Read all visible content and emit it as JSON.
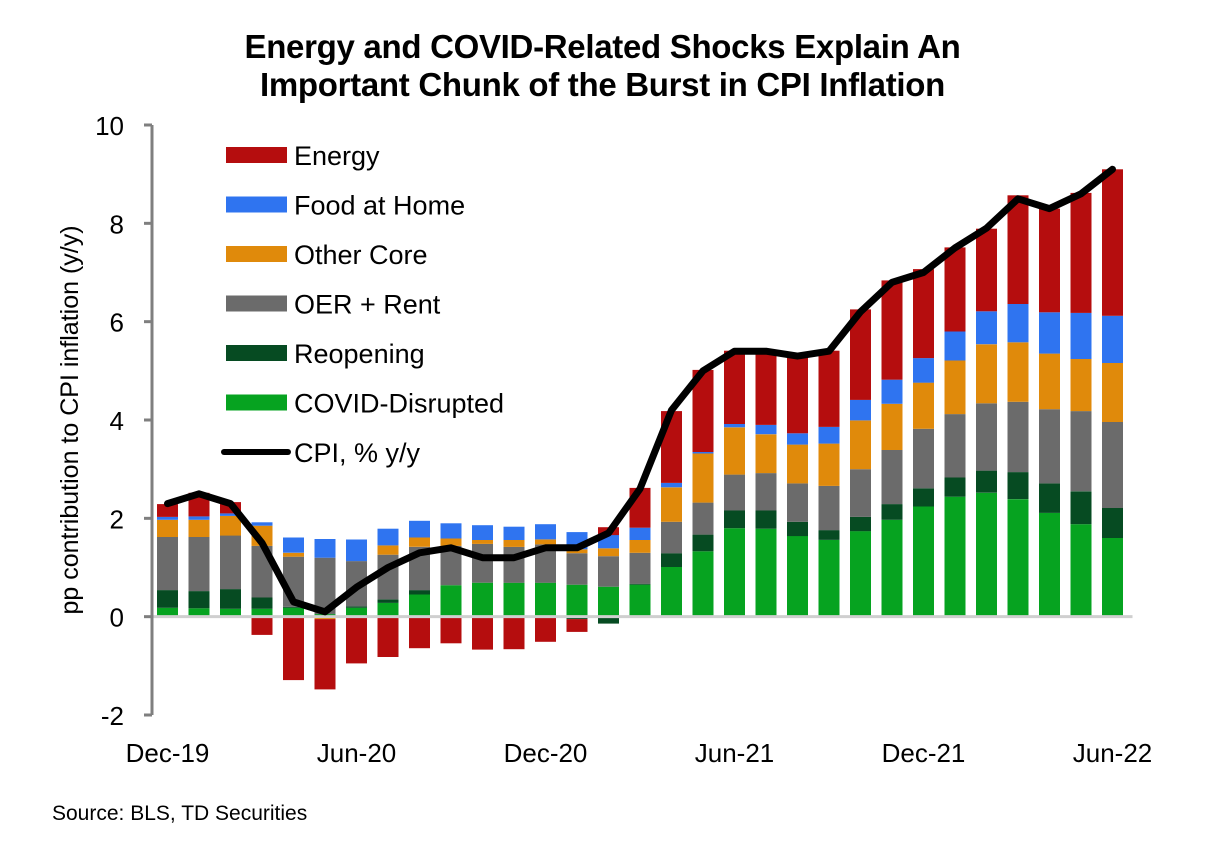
{
  "chart_data": {
    "type": "bar",
    "stacked": true,
    "title": "Energy and COVID-Related Shocks Explain An Important Chunk of the Burst in CPI Inflation",
    "title_lines": [
      "Energy and COVID-Related Shocks Explain An",
      "Important Chunk of the Burst in CPI Inflation"
    ],
    "xlabel": "",
    "ylabel": "pp contribution to CPI inflation (y/y)",
    "ylim": [
      -2,
      10
    ],
    "yticks": [
      -2,
      0,
      2,
      4,
      6,
      8,
      10
    ],
    "ytick_labels": [
      "-2",
      "0",
      "2",
      "4",
      "6",
      "8",
      "10"
    ],
    "grid": false,
    "legend_position": "top-left",
    "source": "Source: BLS, TD Securities",
    "categories": [
      "Dec-19",
      "Jan-20",
      "Feb-20",
      "Mar-20",
      "Apr-20",
      "May-20",
      "Jun-20",
      "Jul-20",
      "Aug-20",
      "Sep-20",
      "Oct-20",
      "Nov-20",
      "Dec-20",
      "Jan-21",
      "Feb-21",
      "Mar-21",
      "Apr-21",
      "May-21",
      "Jun-21",
      "Jul-21",
      "Aug-21",
      "Sep-21",
      "Oct-21",
      "Nov-21",
      "Dec-21",
      "Jan-22",
      "Feb-22",
      "Mar-22",
      "Apr-22",
      "May-22",
      "Jun-22"
    ],
    "xtick_labels": [
      {
        "index": 0,
        "label": "Dec-19"
      },
      {
        "index": 6,
        "label": "Jun-20"
      },
      {
        "index": 12,
        "label": "Dec-20"
      },
      {
        "index": 18,
        "label": "Jun-21"
      },
      {
        "index": 24,
        "label": "Dec-21"
      },
      {
        "index": 30,
        "label": "Jun-22"
      }
    ],
    "series": [
      {
        "name": "COVID-Disrupted",
        "color": "#06A320",
        "kind": "bar",
        "values": [
          0.18,
          0.17,
          0.16,
          0.16,
          0.18,
          0.05,
          0.18,
          0.28,
          0.45,
          0.64,
          0.69,
          0.69,
          0.69,
          0.65,
          0.61,
          0.65,
          1.01,
          1.33,
          1.8,
          1.79,
          1.64,
          1.56,
          1.74,
          1.97,
          2.24,
          2.44,
          2.52,
          2.39,
          2.11,
          1.88,
          1.6
        ]
      },
      {
        "name": "Reopening",
        "color": "#064B22",
        "kind": "bar",
        "values": [
          0.36,
          0.35,
          0.4,
          0.23,
          0.02,
          0.01,
          0.03,
          0.07,
          0.09,
          0.0,
          0.0,
          0.0,
          0.0,
          -0.05,
          -0.14,
          0.02,
          0.28,
          0.34,
          0.36,
          0.37,
          0.29,
          0.2,
          0.29,
          0.32,
          0.37,
          0.39,
          0.45,
          0.55,
          0.6,
          0.67,
          0.61
        ]
      },
      {
        "name": "OER + Rent",
        "color": "#6B6B6B",
        "kind": "bar",
        "values": [
          1.08,
          1.1,
          1.09,
          1.05,
          1.02,
          1.14,
          0.92,
          0.91,
          0.88,
          0.8,
          0.79,
          0.73,
          0.78,
          0.64,
          0.62,
          0.63,
          0.64,
          0.65,
          0.73,
          0.76,
          0.78,
          0.9,
          0.97,
          1.1,
          1.21,
          1.29,
          1.37,
          1.43,
          1.51,
          1.63,
          1.75
        ]
      },
      {
        "name": "Other Core",
        "color": "#E08A0B",
        "kind": "bar",
        "values": [
          0.35,
          0.35,
          0.4,
          0.41,
          0.08,
          -0.05,
          0.0,
          0.19,
          0.19,
          0.15,
          0.08,
          0.14,
          0.1,
          0.08,
          0.16,
          0.26,
          0.7,
          1.0,
          0.96,
          0.79,
          0.79,
          0.86,
          0.99,
          0.94,
          0.94,
          1.09,
          1.2,
          1.21,
          1.13,
          1.06,
          1.2
        ]
      },
      {
        "name": "Food at Home",
        "color": "#2F74F0",
        "kind": "bar",
        "values": [
          0.06,
          0.07,
          0.05,
          0.07,
          0.31,
          0.38,
          0.44,
          0.34,
          0.34,
          0.31,
          0.3,
          0.27,
          0.31,
          0.35,
          0.27,
          0.25,
          0.09,
          0.03,
          0.07,
          0.19,
          0.23,
          0.34,
          0.42,
          0.49,
          0.5,
          0.59,
          0.67,
          0.78,
          0.84,
          0.94,
          0.96
        ]
      },
      {
        "name": "Energy",
        "color": "#B50D0E",
        "kind": "bar",
        "values": [
          0.26,
          0.48,
          0.23,
          -0.37,
          -1.29,
          -1.43,
          -0.95,
          -0.82,
          -0.64,
          -0.54,
          -0.67,
          -0.66,
          -0.51,
          -0.26,
          0.16,
          0.81,
          1.46,
          1.67,
          1.49,
          1.48,
          1.55,
          1.55,
          1.84,
          2.02,
          1.81,
          1.71,
          1.68,
          2.21,
          2.11,
          2.44,
          2.98
        ]
      },
      {
        "name": "CPI, % y/y",
        "color": "#000000",
        "kind": "line",
        "values": [
          2.3,
          2.5,
          2.3,
          1.5,
          0.3,
          0.1,
          0.6,
          1.0,
          1.3,
          1.4,
          1.2,
          1.2,
          1.4,
          1.4,
          1.7,
          2.6,
          4.2,
          5.0,
          5.4,
          5.4,
          5.3,
          5.4,
          6.2,
          6.8,
          7.0,
          7.5,
          7.9,
          8.5,
          8.3,
          8.6,
          9.1
        ]
      }
    ],
    "legend_order": [
      "Energy",
      "Food at Home",
      "Other Core",
      "OER + Rent",
      "Reopening",
      "COVID-Disrupted",
      "CPI, % y/y"
    ]
  }
}
